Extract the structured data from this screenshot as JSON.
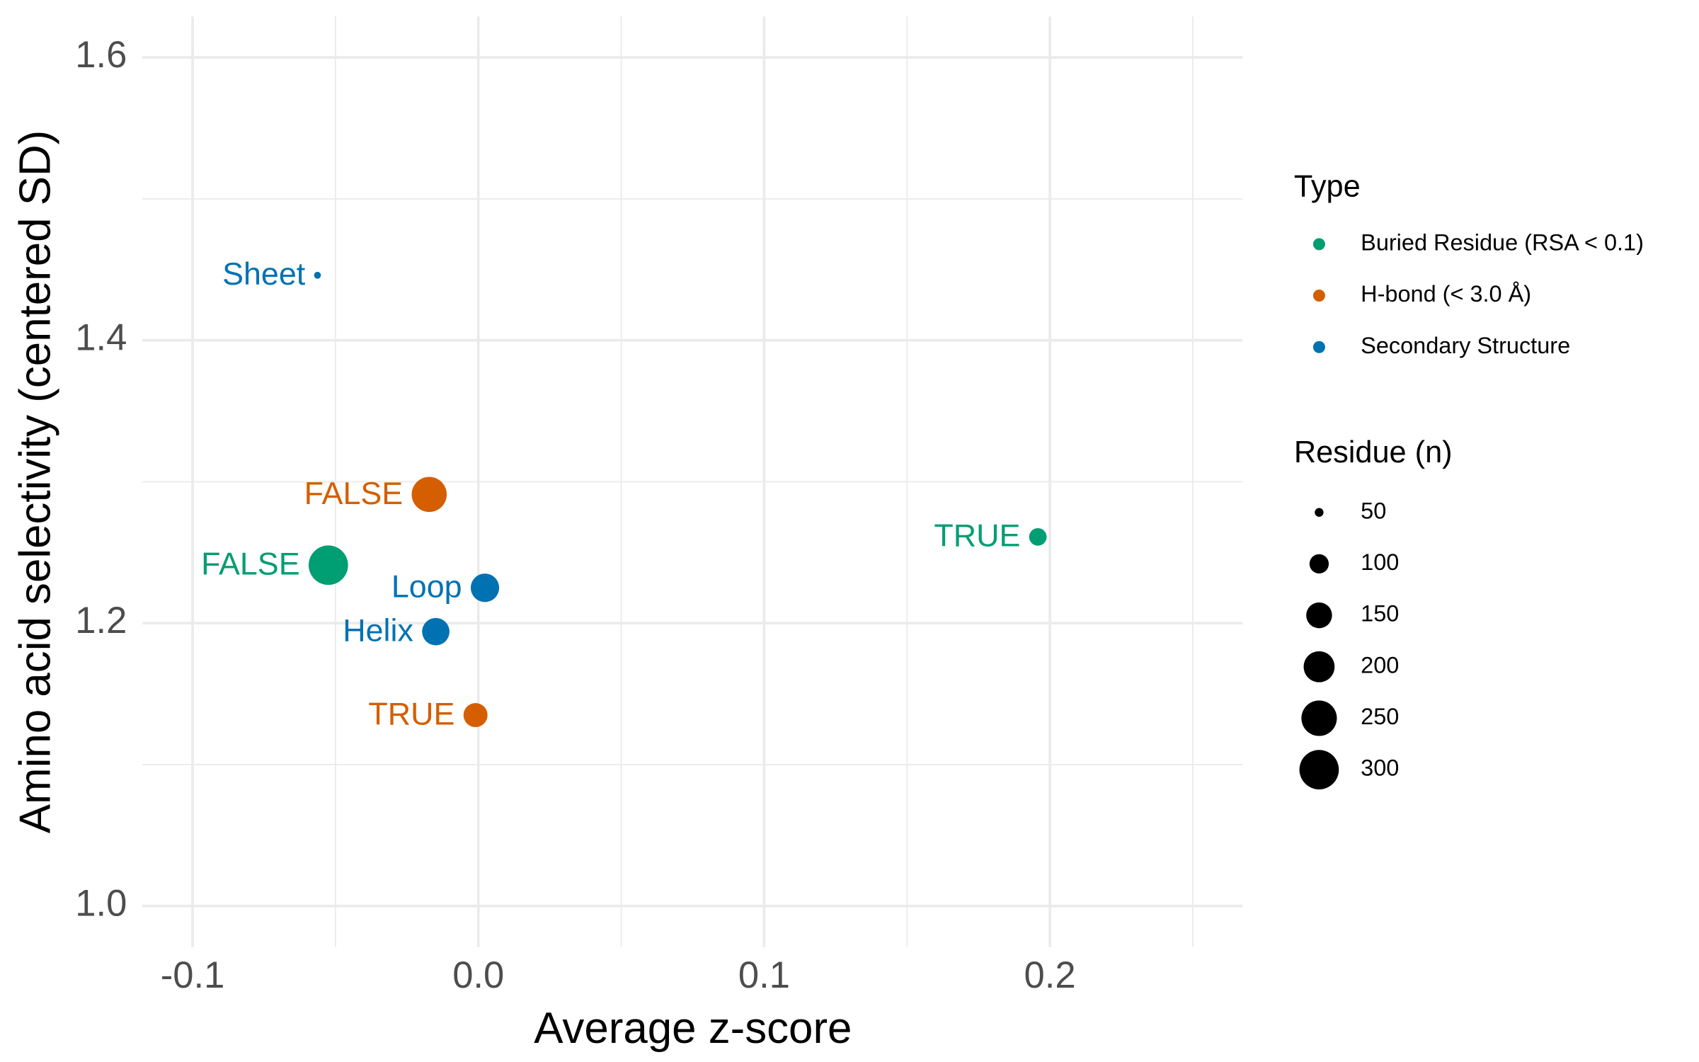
{
  "chart_data": {
    "type": "scatter",
    "x_label": "Average z-score",
    "y_label": "Amino acid selectivity (centered SD)",
    "xlim": [
      -0.1176,
      0.2674
    ],
    "ylim": [
      0.971,
      1.629
    ],
    "xticks": [
      -0.1,
      0.0,
      0.1,
      0.2
    ],
    "yticks": [
      1.0,
      1.2,
      1.4,
      1.6
    ],
    "xminor": [
      -0.05,
      0.05,
      0.15,
      0.25
    ],
    "yminor": [
      1.1,
      1.3,
      1.5
    ],
    "grid": true,
    "legend_title": "Type",
    "series": [
      {
        "name": "Buried Residue (RSA < 0.1)",
        "color": "#009E73",
        "x": [
          0.1958,
          -0.0525
        ],
        "y": [
          1.261,
          1.241
        ],
        "size": [
          89,
          300
        ],
        "labels": [
          "TRUE",
          "FALSE"
        ]
      },
      {
        "name": "H-bond (< 3.0 Å)",
        "color": "#D55E00",
        "x": [
          -0.0172,
          -0.001
        ],
        "y": [
          1.291,
          1.135
        ],
        "size": [
          245,
          135
        ],
        "labels": [
          "FALSE",
          "TRUE"
        ]
      },
      {
        "name": "Secondary Structure",
        "color": "#0072B2",
        "x": [
          -0.0563,
          0.0023,
          -0.0149
        ],
        "y": [
          1.446,
          1.225,
          1.194
        ],
        "size": [
          45,
          174,
          164
        ],
        "labels": [
          "Sheet",
          "Loop",
          "Helix"
        ]
      }
    ],
    "size_legend": {
      "title": "Residue (n)",
      "values": [
        50,
        100,
        150,
        200,
        250,
        300
      ]
    }
  }
}
